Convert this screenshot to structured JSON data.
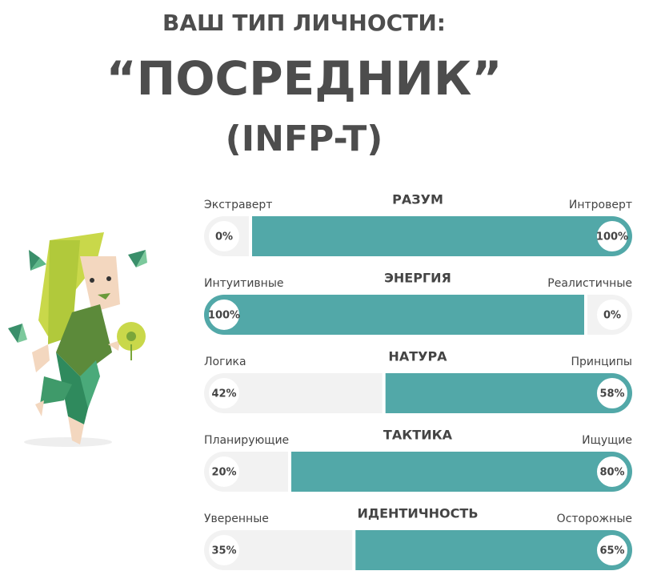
{
  "header": {
    "kicker": "ВАШ ТИП ЛИЧНОСТИ:",
    "type_name": "“ПОСРЕДНИК”",
    "code": "(INFP-T)"
  },
  "traits": [
    {
      "title": "РАЗУМ",
      "left": "Экстраверт",
      "right": "Интроверт",
      "values": [
        0,
        100
      ],
      "value_labels": [
        "0%",
        "100%"
      ]
    },
    {
      "title": "ЭНЕРГИЯ",
      "left": "Интуитивные",
      "right": "Реалистичные",
      "values": [
        100,
        0
      ],
      "value_labels": [
        "100%",
        "0%"
      ]
    },
    {
      "title": "НАТУРА",
      "left": "Логика",
      "right": "Принципы",
      "values": [
        42,
        58
      ],
      "value_labels": [
        "42%",
        "58%"
      ]
    },
    {
      "title": "ТАКТИКА",
      "left": "Планирующие",
      "right": "Ищущие",
      "values": [
        20,
        80
      ],
      "value_labels": [
        "20%",
        "80%"
      ]
    },
    {
      "title": "ИДЕНТИЧНОСТЬ",
      "left": "Уверенные",
      "right": "Осторожные",
      "values": [
        35,
        65
      ],
      "value_labels": [
        "35%",
        "65%"
      ]
    }
  ]
}
